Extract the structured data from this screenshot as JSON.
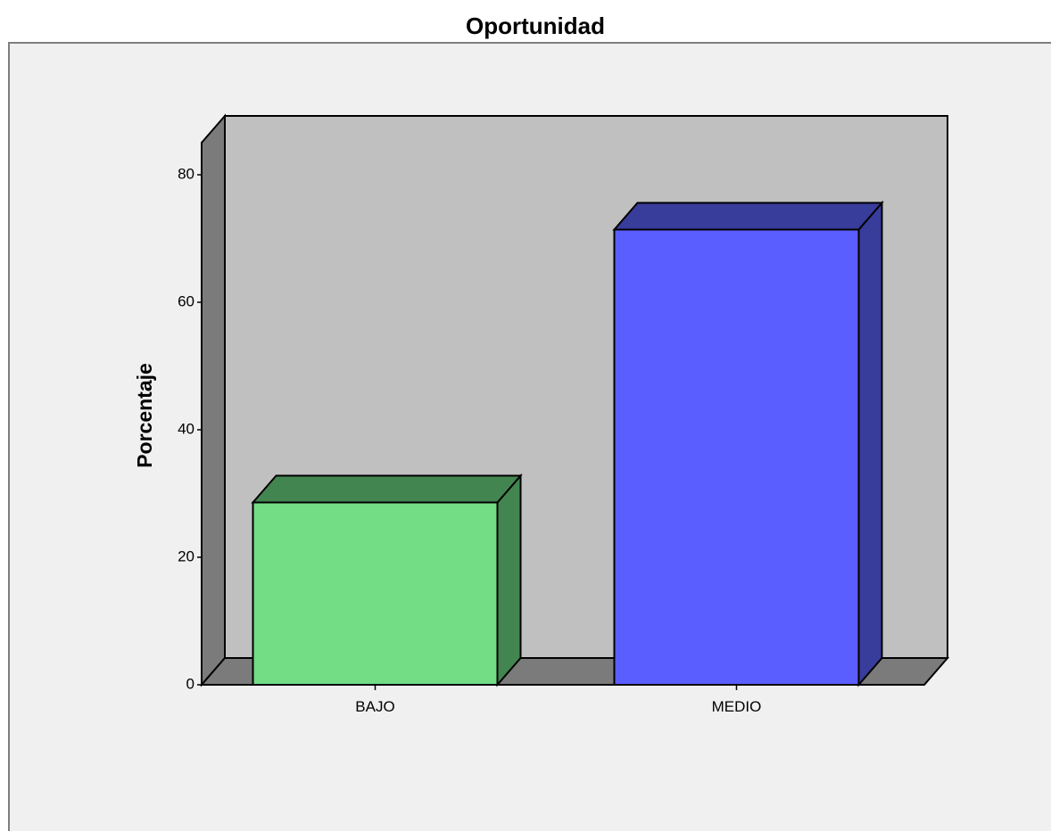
{
  "chart_data": {
    "type": "bar",
    "title": "Oportunidad",
    "ylabel": "Porcentaje",
    "xlabel": "",
    "categories": [
      "BAJO",
      "MEDIO"
    ],
    "values": [
      28.6,
      71.4
    ],
    "ylim": [
      0,
      80
    ],
    "yticks": [
      0,
      20,
      40,
      60,
      80
    ],
    "bar_colors": [
      {
        "front": "#72dd85",
        "side": "#438550"
      },
      {
        "front": "#5b5eff",
        "side": "#383c9a"
      }
    ],
    "wall_color": "#c0c0c0",
    "floor_color": "#7b7b7b",
    "background_color": "#f0f0f0",
    "grid": false,
    "legend": "none",
    "style": "3d"
  }
}
